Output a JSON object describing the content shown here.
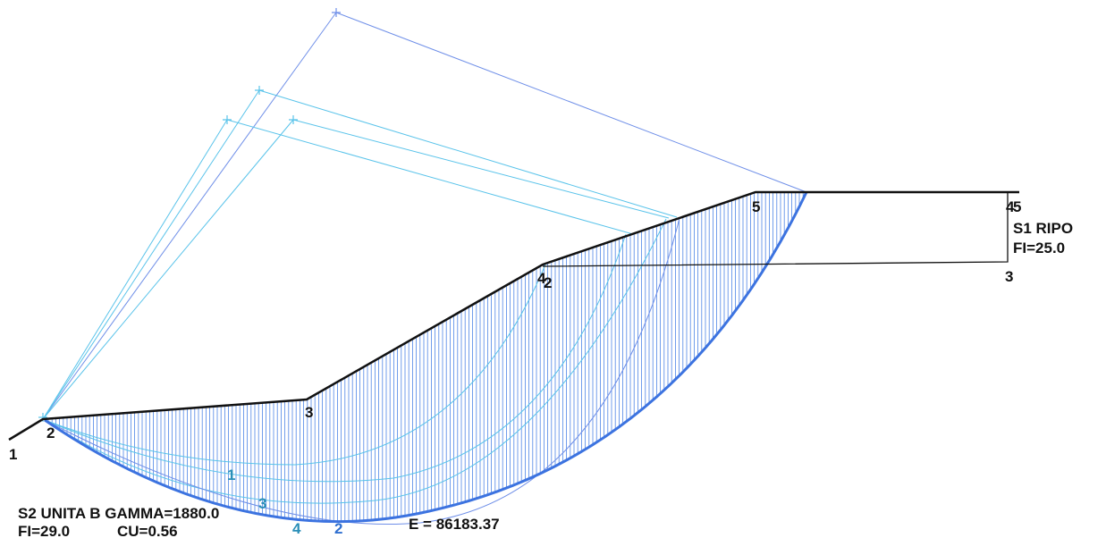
{
  "colors": {
    "ground": "#111111",
    "slice": "#4f86e6",
    "critical_surface": "#3c73e0",
    "circle_dark": "#6f8fe8",
    "circle_light": "#59c3ea",
    "label_teal": "#2a8fb8",
    "label_blue": "#2f6fd0",
    "background": "#ffffff"
  },
  "profile_labels": {
    "p1": "1",
    "p2": "2",
    "p3": "3",
    "p4a": "4",
    "p4b": "2",
    "p5": "5",
    "p6": "4",
    "p7": "5",
    "layer_right_3": "3"
  },
  "surface_labels": {
    "s1": "1",
    "s2": "3",
    "s3": "4",
    "s4": "2"
  },
  "strata": {
    "s1_name": "S1  RIPO",
    "s1_params": "FI=25.0",
    "s2_name": "S2  UNITA  B  GAMMA=1880.0",
    "s2_params_fi": "FI=29.0",
    "s2_params_cu": "CU=0.56"
  },
  "result": {
    "energy_label": "E  =  86183.37"
  }
}
